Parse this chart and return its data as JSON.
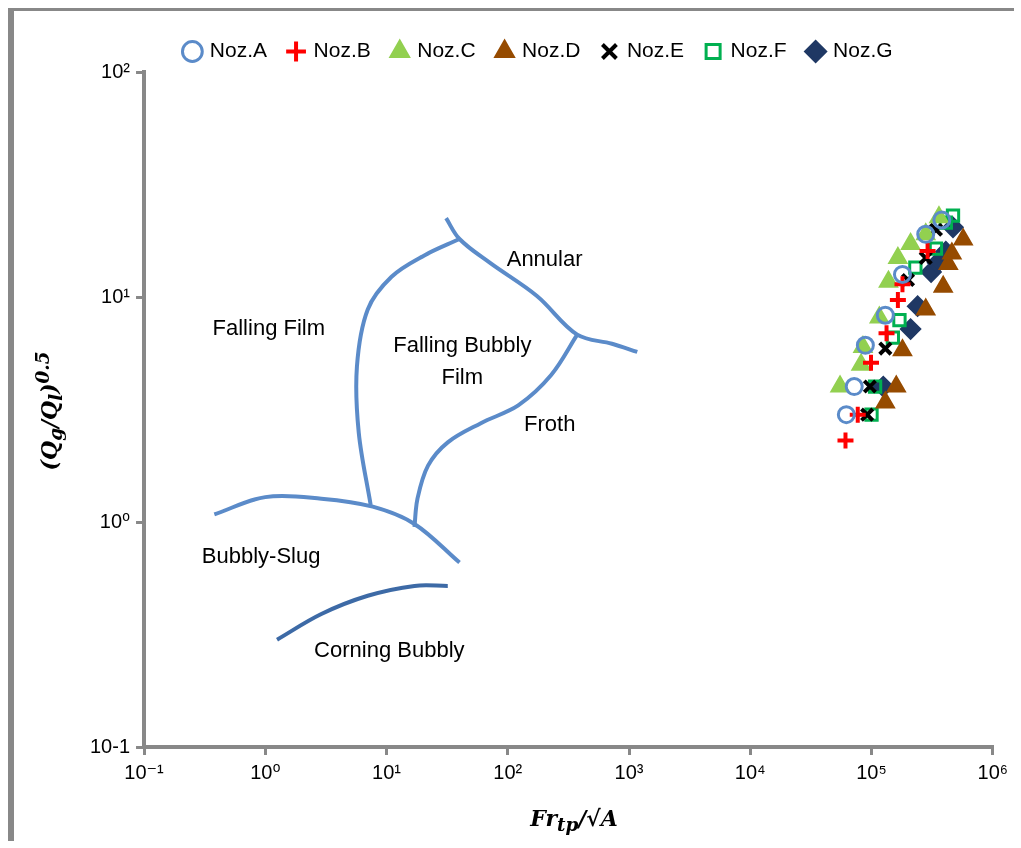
{
  "chart_data": {
    "type": "scatter",
    "xlabel": "Fr$_{tp}$/√A",
    "ylabel": "(Q$_{g}$/Q$_{l}$)$^{0.5}$",
    "log": "xy",
    "grid": false,
    "legend": "top",
    "xlim": [
      0.1,
      1000000
    ],
    "ylim": [
      0.1,
      100
    ],
    "xticks": [
      {
        "value": 0.1,
        "label": "10⁻¹"
      },
      {
        "value": 1,
        "label": "10⁰"
      },
      {
        "value": 10,
        "label": "10¹"
      },
      {
        "value": 100,
        "label": "10²"
      },
      {
        "value": 1000,
        "label": "10³"
      },
      {
        "value": 10000,
        "label": "10⁴"
      },
      {
        "value": 100000,
        "label": "10⁵"
      },
      {
        "value": 1000000,
        "label": "10⁶"
      }
    ],
    "yticks": [
      {
        "value": 0.1,
        "label": "10-1"
      },
      {
        "value": 1,
        "label": "10⁰"
      },
      {
        "value": 10,
        "label": "10¹"
      },
      {
        "value": 100,
        "label": "10²"
      }
    ],
    "series": [
      {
        "name": "Noz.A",
        "color": "#5b8bc9",
        "marker": "circle",
        "x": [
          62000,
          72000,
          89000,
          130000,
          180000,
          280000,
          380000
        ],
        "values": [
          3,
          4,
          6.1,
          8.3,
          12.6,
          19,
          22
        ]
      },
      {
        "name": "Noz.B",
        "color": "#ff0000",
        "x": [
          61000,
          77000,
          99000,
          133000,
          165000,
          180000,
          290000
        ],
        "values": [
          2.3,
          3,
          5.1,
          6.9,
          9.7,
          11.4,
          16
        ]
      },
      {
        "name": "Noz.C",
        "color": "#92d050",
        "marker": "triangle",
        "x": [
          55000,
          82000,
          85000,
          116000,
          138000,
          165000,
          210000,
          280000,
          360000
        ],
        "values": [
          4,
          5,
          6,
          8.1,
          11.7,
          14.9,
          17.2,
          19,
          22.6
        ]
      },
      {
        "name": "Noz.D",
        "color": "#964b00",
        "marker": "triangle",
        "x": [
          130000,
          160000,
          180000,
          280000,
          390000,
          430000,
          460000,
          570000
        ],
        "values": [
          3.4,
          4,
          5.8,
          8.8,
          11.1,
          14,
          15.6,
          18
        ]
      },
      {
        "name": "Noz.E",
        "color": "#000000",
        "marker": "cross",
        "x": [
          92000,
          97000,
          130000,
          200000,
          280000,
          340000
        ],
        "values": [
          3,
          4,
          5.9,
          11.9,
          14.9,
          19.9
        ]
      },
      {
        "name": "Noz.F",
        "color": "#00b050",
        "marker": "square",
        "x": [
          100000,
          107000,
          150000,
          170000,
          230000,
          340000,
          410000,
          470000
        ],
        "values": [
          3,
          4,
          6.6,
          7.9,
          13.5,
          16.4,
          21.4,
          23
        ]
      },
      {
        "name": "Noz.G",
        "color": "#1f3864",
        "marker": "diamond",
        "x": [
          125000,
          210000,
          240000,
          310000,
          350000,
          410000,
          470000
        ],
        "values": [
          4,
          7.2,
          9.1,
          12.9,
          14.2,
          15.9,
          20.4
        ]
      },
      {
        "type": "line",
        "color": "#5b8bc9",
        "x": [
          0.38,
          1,
          2.9,
          7.7,
          17,
          40
        ],
        "values": [
          1.08,
          1.29,
          1.27,
          1.17,
          0.98,
          0.66
        ]
      },
      {
        "type": "line",
        "color": "#5b8bc9",
        "x": [
          7.4,
          5.9,
          5.7,
          7,
          11,
          20.5,
          40
        ],
        "values": [
          1.19,
          2.5,
          4.9,
          8.8,
          12.3,
          15.3,
          18.1
        ]
      },
      {
        "type": "line",
        "color": "#5b8bc9",
        "x": [
          31,
          40,
          71,
          174,
          374,
          723,
          1170
        ],
        "values": [
          22.4,
          18.1,
          14.2,
          10.1,
          6.8,
          6.2,
          5.7
        ]
      },
      {
        "type": "line",
        "color": "#5b8bc9",
        "x": [
          17,
          18,
          22,
          32,
          60,
          122,
          228,
          374
        ],
        "values": [
          0.95,
          1.27,
          1.78,
          2.26,
          2.75,
          3.3,
          4.5,
          6.8
        ]
      },
      {
        "type": "line",
        "color": "#3d6aa6",
        "x": [
          1.25,
          2.9,
          7,
          17,
          32
        ],
        "values": [
          0.3,
          0.39,
          0.47,
          0.52,
          0.52
        ]
      }
    ],
    "annotations": [
      "Falling Film",
      "Falling Bubbly Film",
      "Annular",
      "Froth",
      "Bubbly-Slug",
      "Corning Bubbly"
    ]
  }
}
